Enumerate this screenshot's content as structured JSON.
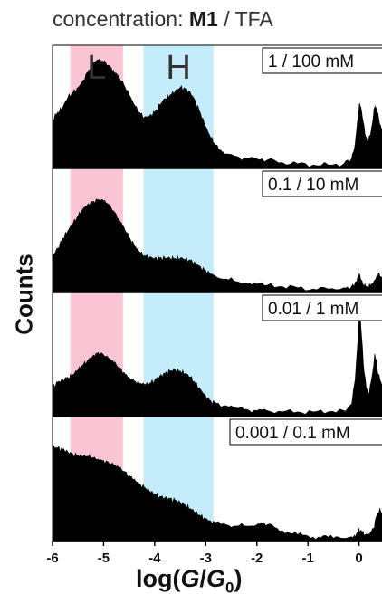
{
  "chart_data": {
    "type": "area",
    "title": {
      "prefix": "concentration: ",
      "bold": "M1",
      "suffix": " / TFA"
    },
    "ylabel": "Counts",
    "xlabel": {
      "open": "log(",
      "numerator": "G",
      "slash": "/",
      "denominator": "G",
      "subscript": "0",
      "close": ")"
    },
    "xlim": [
      -6,
      0.45
    ],
    "ticks": [
      "-6",
      "-5",
      "-4",
      "-3",
      "-2",
      "-1",
      "0"
    ],
    "tick_values": [
      -6,
      -5,
      -4,
      -3,
      -2,
      -1,
      0
    ],
    "bands": [
      {
        "label": "L",
        "range": [
          -5.65,
          -4.62
        ],
        "color": "#f9c4d4"
      },
      {
        "label": "H",
        "range": [
          -4.22,
          -2.85
        ],
        "color": "#c4ecfb"
      }
    ],
    "grid": false,
    "series": [
      {
        "name": "1 / 100  mM",
        "points": [
          [
            -6,
            0.4
          ],
          [
            -5.9,
            0.46
          ],
          [
            -5.8,
            0.5
          ],
          [
            -5.7,
            0.58
          ],
          [
            -5.6,
            0.62
          ],
          [
            -5.5,
            0.66
          ],
          [
            -5.4,
            0.72
          ],
          [
            -5.3,
            0.8
          ],
          [
            -5.2,
            0.86
          ],
          [
            -5.1,
            0.88
          ],
          [
            -5.0,
            0.87
          ],
          [
            -4.9,
            0.84
          ],
          [
            -4.8,
            0.8
          ],
          [
            -4.7,
            0.75
          ],
          [
            -4.6,
            0.68
          ],
          [
            -4.5,
            0.6
          ],
          [
            -4.4,
            0.52
          ],
          [
            -4.3,
            0.46
          ],
          [
            -4.2,
            0.42
          ],
          [
            -4.1,
            0.43
          ],
          [
            -4.0,
            0.46
          ],
          [
            -3.9,
            0.52
          ],
          [
            -3.8,
            0.57
          ],
          [
            -3.7,
            0.6
          ],
          [
            -3.6,
            0.63
          ],
          [
            -3.5,
            0.66
          ],
          [
            -3.4,
            0.65
          ],
          [
            -3.3,
            0.62
          ],
          [
            -3.2,
            0.55
          ],
          [
            -3.1,
            0.45
          ],
          [
            -3.0,
            0.34
          ],
          [
            -2.9,
            0.25
          ],
          [
            -2.8,
            0.19
          ],
          [
            -2.7,
            0.15
          ],
          [
            -2.6,
            0.12
          ],
          [
            -2.4,
            0.1
          ],
          [
            -2.2,
            0.08
          ],
          [
            -2.0,
            0.08
          ],
          [
            -1.8,
            0.07
          ],
          [
            -1.5,
            0.05
          ],
          [
            -1.2,
            0.04
          ],
          [
            -0.9,
            0.03
          ],
          [
            -0.6,
            0.03
          ],
          [
            -0.3,
            0.04
          ],
          [
            -0.15,
            0.08
          ],
          [
            -0.08,
            0.2
          ],
          [
            -0.03,
            0.4
          ],
          [
            0.0,
            0.52
          ],
          [
            0.04,
            0.5
          ],
          [
            0.08,
            0.4
          ],
          [
            0.12,
            0.28
          ],
          [
            0.18,
            0.22
          ],
          [
            0.23,
            0.3
          ],
          [
            0.28,
            0.44
          ],
          [
            0.31,
            0.52
          ],
          [
            0.35,
            0.48
          ],
          [
            0.4,
            0.38
          ],
          [
            0.45,
            0.32
          ]
        ]
      },
      {
        "name": "0.1 / 10  mM",
        "points": [
          [
            -6,
            0.3
          ],
          [
            -5.9,
            0.36
          ],
          [
            -5.8,
            0.44
          ],
          [
            -5.7,
            0.5
          ],
          [
            -5.6,
            0.56
          ],
          [
            -5.5,
            0.62
          ],
          [
            -5.4,
            0.68
          ],
          [
            -5.3,
            0.72
          ],
          [
            -5.2,
            0.74
          ],
          [
            -5.1,
            0.75
          ],
          [
            -5.0,
            0.74
          ],
          [
            -4.9,
            0.71
          ],
          [
            -4.8,
            0.66
          ],
          [
            -4.7,
            0.6
          ],
          [
            -4.6,
            0.53
          ],
          [
            -4.5,
            0.45
          ],
          [
            -4.4,
            0.38
          ],
          [
            -4.3,
            0.33
          ],
          [
            -4.2,
            0.3
          ],
          [
            -4.1,
            0.29
          ],
          [
            -4.0,
            0.28
          ],
          [
            -3.9,
            0.28
          ],
          [
            -3.8,
            0.28
          ],
          [
            -3.7,
            0.28
          ],
          [
            -3.6,
            0.28
          ],
          [
            -3.5,
            0.28
          ],
          [
            -3.4,
            0.27
          ],
          [
            -3.3,
            0.26
          ],
          [
            -3.2,
            0.24
          ],
          [
            -3.1,
            0.21
          ],
          [
            -3.0,
            0.18
          ],
          [
            -2.9,
            0.15
          ],
          [
            -2.8,
            0.13
          ],
          [
            -2.6,
            0.11
          ],
          [
            -2.4,
            0.09
          ],
          [
            -2.2,
            0.08
          ],
          [
            -2.0,
            0.07
          ],
          [
            -1.8,
            0.06
          ],
          [
            -1.5,
            0.05
          ],
          [
            -1.2,
            0.04
          ],
          [
            -0.9,
            0.03
          ],
          [
            -0.6,
            0.03
          ],
          [
            -0.3,
            0.04
          ],
          [
            -0.15,
            0.05
          ],
          [
            -0.05,
            0.09
          ],
          [
            0.0,
            0.16
          ],
          [
            0.03,
            0.12
          ],
          [
            0.08,
            0.07
          ],
          [
            0.15,
            0.05
          ],
          [
            0.22,
            0.06
          ],
          [
            0.3,
            0.1
          ],
          [
            0.38,
            0.16
          ],
          [
            0.45,
            0.12
          ]
        ]
      },
      {
        "name": "0.01 / 1  mM",
        "points": [
          [
            -6,
            0.24
          ],
          [
            -5.9,
            0.28
          ],
          [
            -5.8,
            0.3
          ],
          [
            -5.7,
            0.32
          ],
          [
            -5.6,
            0.34
          ],
          [
            -5.5,
            0.38
          ],
          [
            -5.4,
            0.42
          ],
          [
            -5.3,
            0.46
          ],
          [
            -5.2,
            0.5
          ],
          [
            -5.1,
            0.52
          ],
          [
            -5.0,
            0.5
          ],
          [
            -4.9,
            0.47
          ],
          [
            -4.8,
            0.44
          ],
          [
            -4.7,
            0.4
          ],
          [
            -4.6,
            0.36
          ],
          [
            -4.5,
            0.32
          ],
          [
            -4.4,
            0.29
          ],
          [
            -4.3,
            0.27
          ],
          [
            -4.2,
            0.26
          ],
          [
            -4.1,
            0.27
          ],
          [
            -4.0,
            0.3
          ],
          [
            -3.9,
            0.33
          ],
          [
            -3.8,
            0.35
          ],
          [
            -3.7,
            0.37
          ],
          [
            -3.6,
            0.38
          ],
          [
            -3.5,
            0.37
          ],
          [
            -3.4,
            0.35
          ],
          [
            -3.3,
            0.32
          ],
          [
            -3.2,
            0.27
          ],
          [
            -3.1,
            0.22
          ],
          [
            -3.0,
            0.17
          ],
          [
            -2.9,
            0.13
          ],
          [
            -2.8,
            0.11
          ],
          [
            -2.6,
            0.09
          ],
          [
            -2.4,
            0.07
          ],
          [
            -2.2,
            0.06
          ],
          [
            -2.0,
            0.05
          ],
          [
            -1.8,
            0.05
          ],
          [
            -1.5,
            0.04
          ],
          [
            -1.2,
            0.04
          ],
          [
            -0.9,
            0.04
          ],
          [
            -0.6,
            0.04
          ],
          [
            -0.3,
            0.05
          ],
          [
            -0.15,
            0.1
          ],
          [
            -0.08,
            0.3
          ],
          [
            -0.03,
            0.6
          ],
          [
            0.0,
            0.82
          ],
          [
            0.03,
            0.8
          ],
          [
            0.06,
            0.62
          ],
          [
            0.1,
            0.38
          ],
          [
            0.15,
            0.22
          ],
          [
            0.2,
            0.2
          ],
          [
            0.26,
            0.35
          ],
          [
            0.3,
            0.5
          ],
          [
            0.34,
            0.46
          ],
          [
            0.38,
            0.34
          ],
          [
            0.45,
            0.26
          ]
        ]
      },
      {
        "name": "0.001 / 0.1  mM",
        "points": [
          [
            -6,
            0.76
          ],
          [
            -5.9,
            0.75
          ],
          [
            -5.8,
            0.74
          ],
          [
            -5.7,
            0.72
          ],
          [
            -5.6,
            0.7
          ],
          [
            -5.5,
            0.69
          ],
          [
            -5.4,
            0.68
          ],
          [
            -5.3,
            0.68
          ],
          [
            -5.2,
            0.67
          ],
          [
            -5.1,
            0.66
          ],
          [
            -5.0,
            0.65
          ],
          [
            -4.9,
            0.63
          ],
          [
            -4.8,
            0.61
          ],
          [
            -4.7,
            0.59
          ],
          [
            -4.6,
            0.56
          ],
          [
            -4.5,
            0.53
          ],
          [
            -4.4,
            0.5
          ],
          [
            -4.3,
            0.46
          ],
          [
            -4.2,
            0.43
          ],
          [
            -4.1,
            0.4
          ],
          [
            -4.0,
            0.38
          ],
          [
            -3.9,
            0.36
          ],
          [
            -3.8,
            0.35
          ],
          [
            -3.7,
            0.34
          ],
          [
            -3.6,
            0.33
          ],
          [
            -3.5,
            0.31
          ],
          [
            -3.4,
            0.29
          ],
          [
            -3.3,
            0.26
          ],
          [
            -3.2,
            0.23
          ],
          [
            -3.1,
            0.2
          ],
          [
            -3.0,
            0.18
          ],
          [
            -2.9,
            0.16
          ],
          [
            -2.8,
            0.15
          ],
          [
            -2.6,
            0.13
          ],
          [
            -2.4,
            0.12
          ],
          [
            -2.2,
            0.12
          ],
          [
            -2.0,
            0.13
          ],
          [
            -1.9,
            0.14
          ],
          [
            -1.8,
            0.13
          ],
          [
            -1.6,
            0.1
          ],
          [
            -1.4,
            0.07
          ],
          [
            -1.2,
            0.05
          ],
          [
            -1.0,
            0.04
          ],
          [
            -0.8,
            0.03
          ],
          [
            -0.6,
            0.03
          ],
          [
            -0.4,
            0.03
          ],
          [
            -0.2,
            0.03
          ],
          [
            -0.1,
            0.04
          ],
          [
            -0.05,
            0.06
          ],
          [
            0.0,
            0.1
          ],
          [
            0.05,
            0.08
          ],
          [
            0.12,
            0.05
          ],
          [
            0.2,
            0.05
          ],
          [
            0.28,
            0.1
          ],
          [
            0.34,
            0.2
          ],
          [
            0.4,
            0.26
          ],
          [
            0.45,
            0.22
          ]
        ]
      }
    ]
  }
}
